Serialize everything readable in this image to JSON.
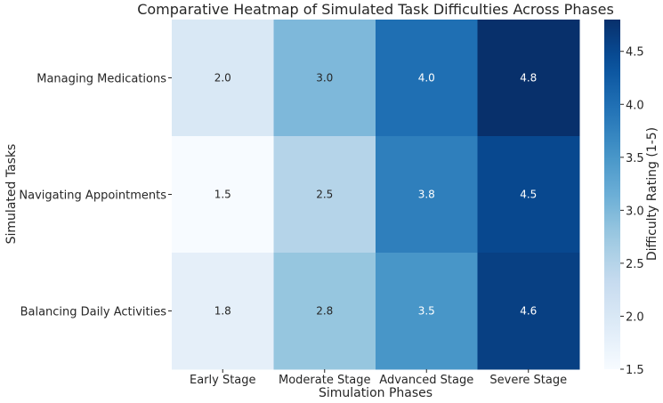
{
  "chart_data": {
    "type": "heatmap",
    "title": "Comparative Heatmap of Simulated Task Difficulties Across Phases",
    "xlabel": "Simulation Phases",
    "ylabel": "Simulated Tasks",
    "x_categories": [
      "Early Stage",
      "Moderate Stage",
      "Advanced Stage",
      "Severe Stage"
    ],
    "y_categories": [
      "Managing Medications",
      "Navigating Appointments",
      "Balancing Daily Activities"
    ],
    "values": [
      [
        2.0,
        3.0,
        4.0,
        4.8
      ],
      [
        1.5,
        2.5,
        3.8,
        4.5
      ],
      [
        1.8,
        2.8,
        3.5,
        4.6
      ]
    ],
    "value_labels": [
      [
        "2.0",
        "3.0",
        "4.0",
        "4.8"
      ],
      [
        "1.5",
        "2.5",
        "3.8",
        "4.5"
      ],
      [
        "1.8",
        "2.8",
        "3.5",
        "4.6"
      ]
    ],
    "colormap": "Blues",
    "colorbar": {
      "label": "Difficulty Rating (1-5)",
      "range": [
        1.5,
        4.8
      ],
      "ticks": [
        1.5,
        2.0,
        2.5,
        3.0,
        3.5,
        4.0,
        4.5
      ],
      "tick_labels": [
        "1.5",
        "2.0",
        "2.5",
        "3.0",
        "3.5",
        "4.0",
        "4.5"
      ]
    },
    "colors": {
      "low": "#f7fbff",
      "high": "#08306b",
      "text": "#262626"
    }
  }
}
